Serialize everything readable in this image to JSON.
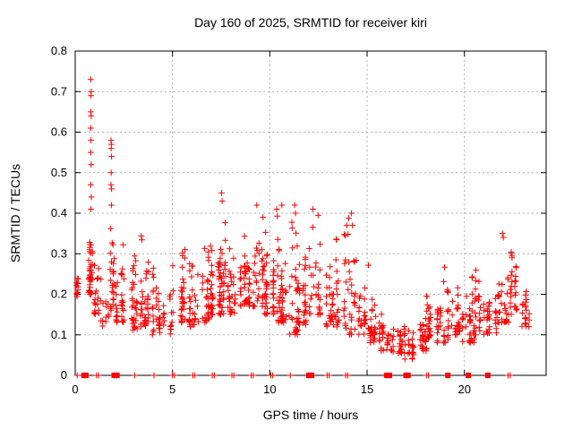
{
  "chart_data": {
    "type": "scatter",
    "title": "Day 160 of 2025, SRMTID for receiver kiri",
    "xlabel": "GPS time / hours",
    "ylabel": "SRMTID / TECUs",
    "xlim": [
      0,
      24.2
    ],
    "ylim": [
      0,
      0.8
    ],
    "x_ticks": [
      0,
      5,
      10,
      15,
      20
    ],
    "y_ticks": [
      0,
      0.1,
      0.2,
      0.3,
      0.4,
      0.5,
      0.6,
      0.7,
      0.8
    ],
    "grid": true,
    "legend": "none",
    "marker": {
      "shape": "plus",
      "size": 7,
      "name": "plus-marker"
    },
    "colors": {
      "marker": "#ff0000",
      "axis": "#000000",
      "grid": "#b0b0b0",
      "text": "#000000",
      "background": "#ffffff"
    },
    "seed": 1160,
    "outliers": [
      [
        0.8,
        0.73
      ],
      [
        0.82,
        0.7
      ],
      [
        0.81,
        0.69
      ],
      [
        0.8,
        0.65
      ],
      [
        0.82,
        0.64
      ],
      [
        0.8,
        0.61
      ],
      [
        0.81,
        0.58
      ],
      [
        0.8,
        0.55
      ],
      [
        0.82,
        0.52
      ],
      [
        0.8,
        0.47
      ],
      [
        0.83,
        0.44
      ],
      [
        0.81,
        0.41
      ],
      [
        1.84,
        0.58
      ],
      [
        1.86,
        0.57
      ],
      [
        1.85,
        0.56
      ],
      [
        1.87,
        0.54
      ],
      [
        1.85,
        0.5
      ],
      [
        1.84,
        0.47
      ],
      [
        1.87,
        0.46
      ],
      [
        1.86,
        0.42
      ],
      [
        7.52,
        0.45
      ],
      [
        7.55,
        0.43
      ],
      [
        9.33,
        0.42
      ],
      [
        10.35,
        0.41
      ],
      [
        10.62,
        0.42
      ],
      [
        11.28,
        0.42
      ],
      [
        11.32,
        0.4
      ],
      [
        12.22,
        0.41
      ],
      [
        13.95,
        0.37
      ],
      [
        14.2,
        0.4
      ],
      [
        14.25,
        0.37
      ],
      [
        21.95,
        0.35
      ],
      [
        22.0,
        0.34
      ]
    ],
    "zeros": [
      [
        0.1,
        1
      ],
      [
        0.45,
        2
      ],
      [
        0.55,
        2
      ],
      [
        1.1,
        1
      ],
      [
        1.2,
        1
      ],
      [
        2.0,
        2
      ],
      [
        2.15,
        2
      ],
      [
        3.05,
        1
      ],
      [
        4.05,
        1
      ],
      [
        5.0,
        1
      ],
      [
        5.1,
        1
      ],
      [
        6.05,
        1
      ],
      [
        6.15,
        1
      ],
      [
        7.05,
        1
      ],
      [
        7.15,
        1
      ],
      [
        8.05,
        1
      ],
      [
        8.15,
        1
      ],
      [
        9.05,
        1
      ],
      [
        9.15,
        1
      ],
      [
        10.05,
        1
      ],
      [
        10.15,
        1
      ],
      [
        11.05,
        1
      ],
      [
        12.0,
        2
      ],
      [
        12.15,
        2
      ],
      [
        12.95,
        1
      ],
      [
        13.05,
        1
      ],
      [
        13.9,
        1
      ],
      [
        14.0,
        1
      ],
      [
        16.0,
        2
      ],
      [
        16.15,
        2
      ],
      [
        17.0,
        2
      ],
      [
        17.1,
        2
      ],
      [
        18.05,
        1
      ],
      [
        18.15,
        1
      ],
      [
        19.15,
        2
      ],
      [
        20.2,
        2
      ],
      [
        21.2,
        2
      ],
      [
        22.25,
        1
      ],
      [
        22.35,
        1
      ]
    ],
    "clusters": [
      [
        0.02,
        0.25,
        8,
        0.19,
        0.27,
        1.2
      ],
      [
        0.72,
        0.95,
        30,
        0.2,
        0.4,
        1.5
      ],
      [
        0.95,
        1.3,
        18,
        0.15,
        0.3,
        1.4
      ],
      [
        1.3,
        1.75,
        18,
        0.12,
        0.26,
        1.3
      ],
      [
        1.8,
        2.05,
        22,
        0.16,
        0.45,
        1.5
      ],
      [
        2.05,
        2.6,
        40,
        0.13,
        0.36,
        1.7
      ],
      [
        2.6,
        3.2,
        35,
        0.11,
        0.31,
        1.5
      ],
      [
        3.2,
        3.9,
        40,
        0.12,
        0.38,
        1.7
      ],
      [
        3.9,
        4.45,
        28,
        0.1,
        0.3,
        1.5
      ],
      [
        4.45,
        5.0,
        22,
        0.1,
        0.26,
        1.3
      ],
      [
        5.0,
        5.65,
        32,
        0.13,
        0.37,
        1.8
      ],
      [
        5.65,
        6.3,
        32,
        0.12,
        0.33,
        1.6
      ],
      [
        6.3,
        6.9,
        36,
        0.13,
        0.38,
        1.7
      ],
      [
        6.9,
        7.45,
        36,
        0.15,
        0.4,
        1.7
      ],
      [
        7.45,
        7.85,
        30,
        0.15,
        0.46,
        1.8
      ],
      [
        7.85,
        8.5,
        36,
        0.15,
        0.38,
        1.7
      ],
      [
        8.5,
        9.1,
        36,
        0.17,
        0.36,
        1.5
      ],
      [
        9.1,
        9.7,
        36,
        0.17,
        0.43,
        1.8
      ],
      [
        9.7,
        10.25,
        36,
        0.15,
        0.38,
        1.6
      ],
      [
        10.25,
        10.85,
        40,
        0.13,
        0.43,
        1.8
      ],
      [
        10.85,
        11.45,
        36,
        0.1,
        0.43,
        1.8
      ],
      [
        11.45,
        12.0,
        32,
        0.12,
        0.36,
        1.6
      ],
      [
        12.0,
        12.6,
        36,
        0.15,
        0.42,
        1.7
      ],
      [
        12.6,
        13.3,
        32,
        0.12,
        0.31,
        1.5
      ],
      [
        13.3,
        13.9,
        30,
        0.11,
        0.37,
        1.6
      ],
      [
        13.9,
        14.5,
        30,
        0.1,
        0.4,
        1.7
      ],
      [
        14.5,
        15.1,
        30,
        0.1,
        0.28,
        1.4
      ],
      [
        15.1,
        15.7,
        30,
        0.08,
        0.22,
        1.3
      ],
      [
        15.7,
        16.3,
        30,
        0.06,
        0.18,
        1.3
      ],
      [
        16.3,
        16.9,
        30,
        0.05,
        0.15,
        1.2
      ],
      [
        16.9,
        17.5,
        30,
        0.04,
        0.14,
        1.2
      ],
      [
        17.5,
        18.1,
        30,
        0.06,
        0.22,
        1.5
      ],
      [
        18.1,
        18.7,
        30,
        0.08,
        0.2,
        1.3
      ],
      [
        18.7,
        19.3,
        30,
        0.08,
        0.3,
        1.6
      ],
      [
        19.3,
        19.9,
        30,
        0.1,
        0.25,
        1.4
      ],
      [
        19.9,
        20.5,
        30,
        0.08,
        0.26,
        1.4
      ],
      [
        20.5,
        21.1,
        30,
        0.1,
        0.29,
        1.5
      ],
      [
        21.1,
        21.7,
        30,
        0.1,
        0.3,
        1.5
      ],
      [
        21.7,
        22.3,
        34,
        0.13,
        0.36,
        1.6
      ],
      [
        22.3,
        22.75,
        26,
        0.15,
        0.35,
        1.5
      ],
      [
        22.75,
        23.35,
        24,
        0.12,
        0.22,
        1.3
      ]
    ]
  }
}
